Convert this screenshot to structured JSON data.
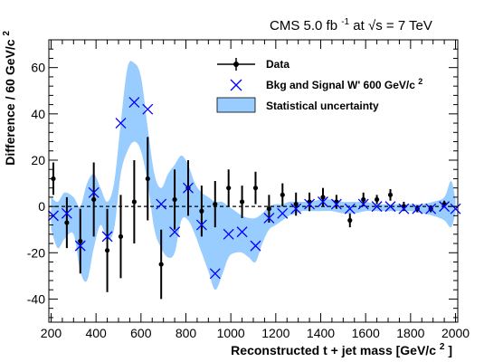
{
  "header": {
    "experiment": "CMS",
    "luminosity_value": "5.0 fb",
    "luminosity_exp": "-1",
    "energy_text": " at ",
    "sqrt_s": "√s",
    "energy_value": " =  7 TeV"
  },
  "chart_data": {
    "type": "line",
    "xlabel_main": "Reconstructed t + jet mass [GeV/c",
    "xlabel_sup": "2",
    "xlabel_end": "]",
    "ylabel_main": "Difference / 60 GeV/c",
    "ylabel_sup": "2",
    "xlim": [
      190,
      2010
    ],
    "ylim": [
      -50,
      72
    ],
    "x_ticks": [
      200,
      400,
      600,
      800,
      1000,
      1200,
      1400,
      1600,
      1800,
      2000
    ],
    "y_ticks": [
      -40,
      -20,
      0,
      20,
      40,
      60
    ],
    "colors": {
      "band": "#99ccff",
      "markers": "#0000ff",
      "data": "#000000",
      "zero_line": "#000000"
    },
    "legend": {
      "placement": "top-right",
      "entries": [
        {
          "label": "Data",
          "sup": ""
        },
        {
          "label": "Bkg and Signal W' 600 GeV/c",
          "sup": "2"
        },
        {
          "label": "Statistical uncertainty",
          "sup": ""
        }
      ]
    },
    "series": [
      {
        "name": "Data",
        "style": "points_with_errors",
        "points": [
          {
            "x": 210,
            "y": 12,
            "err": 7
          },
          {
            "x": 270,
            "y": -7,
            "err": 11
          },
          {
            "x": 330,
            "y": -15,
            "err": 14
          },
          {
            "x": 390,
            "y": 3,
            "err": 16
          },
          {
            "x": 450,
            "y": -19,
            "err": 18
          },
          {
            "x": 510,
            "y": -13,
            "err": 18
          },
          {
            "x": 570,
            "y": 2,
            "err": 18
          },
          {
            "x": 630,
            "y": 12,
            "err": 18
          },
          {
            "x": 690,
            "y": -25,
            "err": 15
          },
          {
            "x": 750,
            "y": 3,
            "err": 13
          },
          {
            "x": 810,
            "y": 8,
            "err": 12
          },
          {
            "x": 870,
            "y": -2,
            "err": 11
          },
          {
            "x": 930,
            "y": 1,
            "err": 10
          },
          {
            "x": 990,
            "y": 8,
            "err": 8
          },
          {
            "x": 1050,
            "y": 2,
            "err": 7
          },
          {
            "x": 1110,
            "y": 8,
            "err": 7
          },
          {
            "x": 1170,
            "y": -1,
            "err": 6
          },
          {
            "x": 1230,
            "y": 5,
            "err": 5
          },
          {
            "x": 1290,
            "y": 1,
            "err": 5
          },
          {
            "x": 1350,
            "y": 2,
            "err": 4
          },
          {
            "x": 1410,
            "y": 4,
            "err": 4
          },
          {
            "x": 1470,
            "y": 2,
            "err": 3
          },
          {
            "x": 1530,
            "y": -6,
            "err": 3
          },
          {
            "x": 1590,
            "y": 3,
            "err": 3
          },
          {
            "x": 1650,
            "y": 3,
            "err": 2
          },
          {
            "x": 1710,
            "y": 5,
            "err": 2.5
          },
          {
            "x": 1770,
            "y": 0,
            "err": 2
          },
          {
            "x": 1830,
            "y": -1,
            "err": 1.5
          },
          {
            "x": 1890,
            "y": -1,
            "err": 1.5
          },
          {
            "x": 1950,
            "y": 1,
            "err": 1.5
          }
        ]
      },
      {
        "name": "Bkg and Signal W' 600 GeV/c2",
        "style": "x_markers",
        "points": [
          {
            "x": 210,
            "y": -4
          },
          {
            "x": 270,
            "y": -3
          },
          {
            "x": 330,
            "y": -17
          },
          {
            "x": 390,
            "y": 6
          },
          {
            "x": 450,
            "y": -13
          },
          {
            "x": 510,
            "y": 36
          },
          {
            "x": 570,
            "y": 45
          },
          {
            "x": 630,
            "y": 42
          },
          {
            "x": 690,
            "y": 1
          },
          {
            "x": 750,
            "y": -11
          },
          {
            "x": 810,
            "y": 8
          },
          {
            "x": 870,
            "y": -8
          },
          {
            "x": 930,
            "y": -29
          },
          {
            "x": 990,
            "y": -12
          },
          {
            "x": 1050,
            "y": -11
          },
          {
            "x": 1110,
            "y": -17
          },
          {
            "x": 1170,
            "y": -5
          },
          {
            "x": 1230,
            "y": -3
          },
          {
            "x": 1290,
            "y": -1
          },
          {
            "x": 1350,
            "y": 1
          },
          {
            "x": 1410,
            "y": 2
          },
          {
            "x": 1470,
            "y": 1
          },
          {
            "x": 1530,
            "y": -1
          },
          {
            "x": 1590,
            "y": 1
          },
          {
            "x": 1650,
            "y": 0
          },
          {
            "x": 1710,
            "y": 0
          },
          {
            "x": 1770,
            "y": -1
          },
          {
            "x": 1830,
            "y": -1
          },
          {
            "x": 1890,
            "y": -1
          },
          {
            "x": 1950,
            "y": 0
          },
          {
            "x": 2000,
            "y": -1
          }
        ]
      },
      {
        "name": "Statistical uncertainty",
        "style": "band",
        "x": [
          200,
          230,
          260,
          300,
          330,
          360,
          390,
          420,
          450,
          480,
          510,
          540,
          570,
          600,
          630,
          660,
          690,
          720,
          750,
          780,
          810,
          840,
          870,
          900,
          930,
          960,
          990,
          1020,
          1050,
          1080,
          1110,
          1140,
          1170,
          1200,
          1230,
          1260,
          1290,
          1320,
          1350,
          1400,
          1450,
          1500,
          1550,
          1600,
          1650,
          1700,
          1750,
          1800,
          1850,
          1900,
          1950,
          1980,
          2000
        ],
        "upper": [
          4,
          2,
          6,
          4,
          0,
          10,
          14,
          8,
          2,
          10,
          36,
          60,
          62,
          56,
          34,
          14,
          8,
          14,
          18,
          22,
          18,
          10,
          6,
          4,
          2,
          2,
          0,
          -2,
          -4,
          -5,
          -5,
          -3,
          0,
          1,
          1,
          2,
          2,
          2,
          2,
          3,
          3,
          2,
          2,
          2,
          1,
          1,
          1,
          1,
          1,
          2,
          4,
          11,
          3
        ],
        "lower": [
          -10,
          -18,
          -14,
          -12,
          -28,
          -32,
          -18,
          -8,
          -14,
          -10,
          14,
          24,
          28,
          24,
          10,
          -10,
          -18,
          -22,
          -20,
          -6,
          -6,
          -12,
          -20,
          -28,
          -36,
          -30,
          -22,
          -20,
          -20,
          -22,
          -24,
          -16,
          -10,
          -8,
          -6,
          -4,
          -3,
          -2,
          -2,
          -2,
          -2,
          -3,
          -3,
          -2,
          -2,
          -2,
          -2,
          -2,
          -3,
          -4,
          -6,
          -9,
          -3
        ]
      }
    ]
  }
}
